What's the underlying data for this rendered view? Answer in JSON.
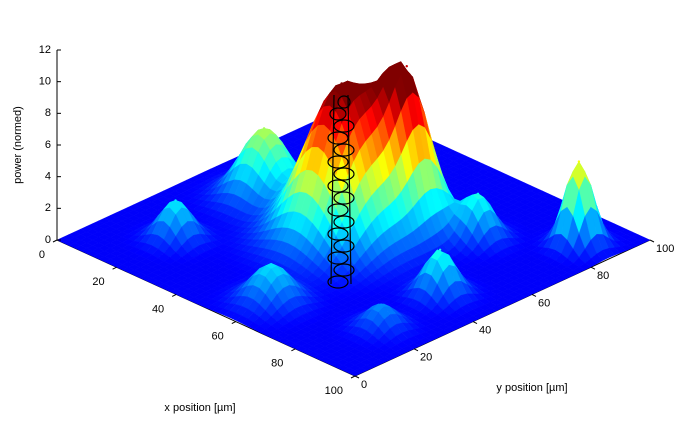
{
  "chart_data": {
    "type": "surface3d",
    "xlabel": "x position [µm]",
    "ylabel": "y position  [µm]",
    "zlabel": "power (normed)",
    "xlim": [
      0,
      100
    ],
    "ylim": [
      0,
      100
    ],
    "zlim": [
      0,
      12
    ],
    "xticks": [
      0,
      20,
      40,
      60,
      80,
      100
    ],
    "yticks": [
      0,
      20,
      40,
      60,
      80,
      100
    ],
    "zticks": [
      0,
      2,
      4,
      6,
      8,
      10,
      12
    ],
    "peaks": {
      "x": [
        48,
        55,
        20,
        20,
        71,
        90,
        85,
        87,
        59
      ],
      "y": [
        48,
        63,
        50,
        20,
        71,
        86,
        44,
        22,
        13
      ],
      "z": [
        9.7,
        8.5,
        4.4,
        2.5,
        2.8,
        5.3,
        2.9,
        1.5,
        2.4
      ],
      "sigma": [
        9,
        6,
        6,
        4,
        4,
        3.5,
        4,
        4,
        5
      ]
    }
  }
}
